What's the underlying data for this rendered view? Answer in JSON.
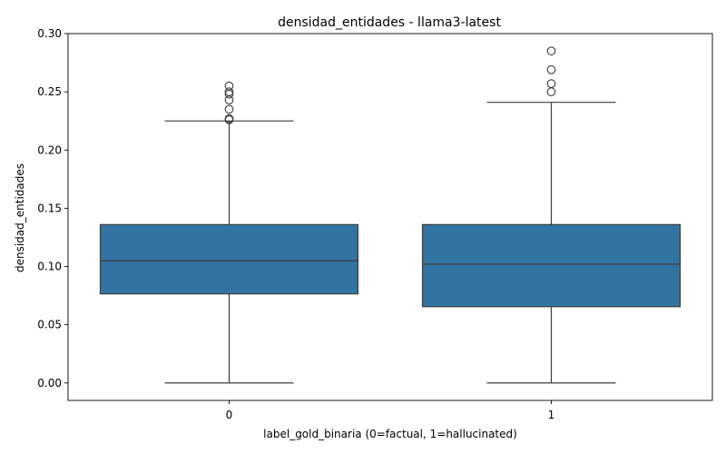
{
  "chart_data": {
    "type": "boxplot",
    "title": "densidad_entidades - llama3-latest",
    "xlabel": "label_gold_binaria (0=factual, 1=hallucinated)",
    "ylabel": "densidad_entidades",
    "ylim": [
      -0.015,
      0.3
    ],
    "yticks": [
      "0.00",
      "0.05",
      "0.10",
      "0.15",
      "0.20",
      "0.25",
      "0.30"
    ],
    "grid": false,
    "box_color": "#3274a1",
    "edge_color": "#3d3d3d",
    "categories": [
      "0",
      "1"
    ],
    "boxes": [
      {
        "label": "0",
        "whisker_low": 0.0,
        "q1": 0.0765,
        "median": 0.105,
        "q3": 0.136,
        "whisker_high": 0.225,
        "outliers": [
          0.226,
          0.227,
          0.235,
          0.243,
          0.248,
          0.25,
          0.255
        ]
      },
      {
        "label": "1",
        "whisker_low": 0.0,
        "q1": 0.0655,
        "median": 0.102,
        "q3": 0.136,
        "whisker_high": 0.241,
        "outliers": [
          0.25,
          0.257,
          0.269,
          0.285
        ]
      }
    ]
  }
}
